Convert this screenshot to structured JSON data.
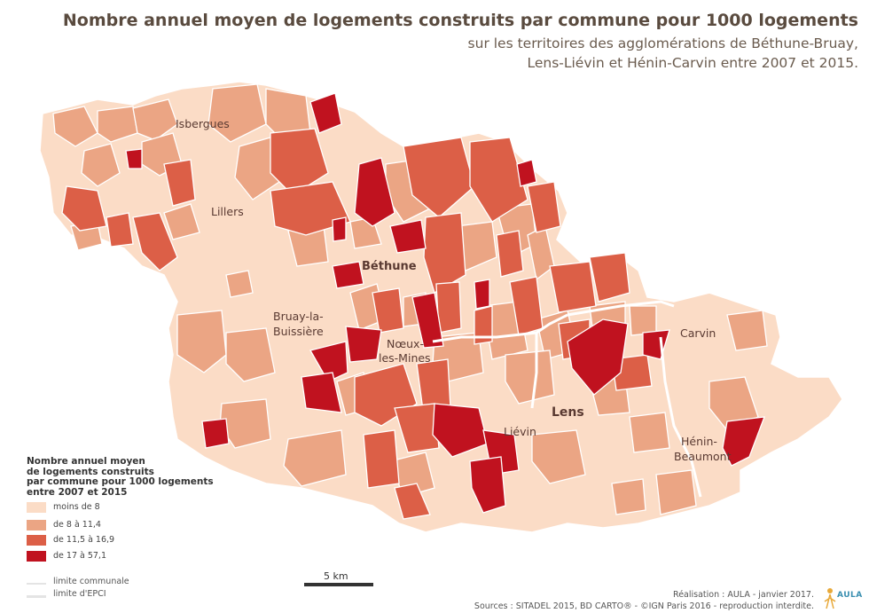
{
  "title": "Nombre annuel moyen de logements construits par commune pour 1000 logements",
  "subtitle_lines": [
    "sur les territoires des agglomérations de Béthune-Bruay,",
    "Lens-Liévin et Hénin-Carvin entre 2007 et 2015."
  ],
  "colors": {
    "class1": "#fbdcc6",
    "class2": "#eba584",
    "class3": "#dc5f47",
    "class4": "#c0121f",
    "commune_border": "#ffffff",
    "epci_border": "#ffffff"
  },
  "cities": [
    {
      "name": "Isbergues"
    },
    {
      "name": "Lillers"
    },
    {
      "name": "Béthune",
      "bold": true
    },
    {
      "name": "Bruay-la-"
    },
    {
      "name": "Buissière"
    },
    {
      "name": "Nœux-"
    },
    {
      "name": "les-Mines"
    },
    {
      "name": "Liévin"
    },
    {
      "name": "Lens",
      "bold": true
    },
    {
      "name": "Carvin"
    },
    {
      "name": "Hénin-"
    },
    {
      "name": "Beaumont"
    }
  ],
  "legend": {
    "title_lines": [
      "Nombre annuel moyen",
      "de logements construits",
      "par commune pour 1000 logements",
      "entre 2007 et 2015"
    ],
    "classes": [
      {
        "label": "moins de 8",
        "color": "#fbdcc6"
      },
      {
        "label": "de 8 à 11,4",
        "color": "#eba584"
      },
      {
        "label": "de 11,5 à 16,9",
        "color": "#dc5f47"
      },
      {
        "label": "de 17 à 57,1",
        "color": "#c0121f"
      }
    ],
    "lines": [
      {
        "label": "limite communale"
      },
      {
        "label": "limite d'EPCI"
      }
    ]
  },
  "scale": {
    "label": "5 km"
  },
  "credits": {
    "line1": "Réalisation : AULA - janvier 2017.",
    "line2": "Sources : SITADEL 2015, BD CARTO® - ©IGN Paris 2016 - reproduction interdite."
  },
  "logo": {
    "text": "AULA"
  }
}
